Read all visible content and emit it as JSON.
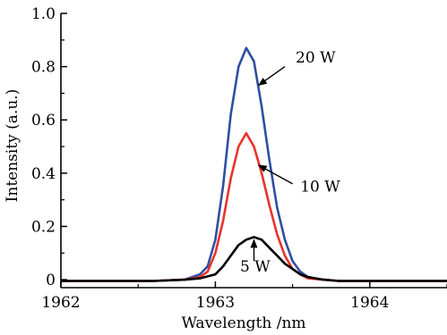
{
  "chart_data": {
    "type": "line",
    "xlabel": "Wavelength /nm",
    "ylabel": "Intensity (a.u.)",
    "xlim": [
      1962.0,
      1964.5
    ],
    "ylim": [
      -0.03,
      1.0
    ],
    "x_ticks": [
      1962,
      1963,
      1964
    ],
    "y_ticks": [
      0,
      0.2,
      0.4,
      0.6,
      0.8,
      1.0
    ],
    "x_tick_labels": [
      "1962",
      "1963",
      "1964"
    ],
    "y_tick_labels": [
      "0",
      "0.2",
      "0.4",
      "0.6",
      "0.8",
      "1.0"
    ],
    "grid": false,
    "series": [
      {
        "color": "#2f4fa0",
        "x": [
          1962.0,
          1962.6,
          1962.8,
          1962.9,
          1962.95,
          1963.0,
          1963.05,
          1963.1,
          1963.15,
          1963.2,
          1963.25,
          1963.3,
          1963.35,
          1963.4,
          1963.45,
          1963.5,
          1963.55,
          1963.6,
          1963.7,
          1963.8,
          1964.0,
          1964.5
        ],
        "y": [
          -0.005,
          -0.005,
          0.0,
          0.02,
          0.05,
          0.15,
          0.35,
          0.62,
          0.8,
          0.87,
          0.82,
          0.65,
          0.45,
          0.27,
          0.15,
          0.07,
          0.03,
          0.01,
          0.0,
          -0.005,
          -0.005,
          -0.005
        ]
      },
      {
        "color": "#e8332a",
        "x": [
          1962.0,
          1962.6,
          1962.8,
          1962.9,
          1962.95,
          1963.0,
          1963.05,
          1963.1,
          1963.15,
          1963.2,
          1963.25,
          1963.3,
          1963.35,
          1963.4,
          1963.45,
          1963.5,
          1963.55,
          1963.6,
          1963.7,
          1963.8,
          1964.0,
          1964.5
        ],
        "y": [
          -0.005,
          -0.005,
          0.0,
          0.01,
          0.03,
          0.1,
          0.22,
          0.38,
          0.5,
          0.55,
          0.5,
          0.4,
          0.28,
          0.17,
          0.09,
          0.04,
          0.02,
          0.005,
          0.0,
          -0.005,
          -0.005,
          -0.005
        ]
      },
      {
        "color": "#000000",
        "x": [
          1962.0,
          1962.6,
          1962.8,
          1962.9,
          1963.0,
          1963.05,
          1963.1,
          1963.15,
          1963.2,
          1963.25,
          1963.3,
          1963.35,
          1963.4,
          1963.45,
          1963.5,
          1963.55,
          1963.6,
          1963.7,
          1963.8,
          1964.0,
          1964.5
        ],
        "y": [
          -0.005,
          -0.005,
          0.0,
          0.005,
          0.02,
          0.05,
          0.09,
          0.13,
          0.15,
          0.16,
          0.15,
          0.12,
          0.09,
          0.06,
          0.04,
          0.02,
          0.01,
          0.0,
          -0.005,
          -0.005,
          -0.005
        ]
      }
    ],
    "annotations": [
      {
        "text": "20 W",
        "x": 1963.52,
        "y": 0.815,
        "arrow_to": [
          1963.28,
          0.73
        ],
        "arrow_from": [
          1963.45,
          0.8
        ]
      },
      {
        "text": "10 W",
        "x": 1963.55,
        "y": 0.33,
        "arrow_to": [
          1963.28,
          0.43
        ],
        "arrow_from": [
          1963.5,
          0.36
        ]
      },
      {
        "text": "5 W",
        "x": 1963.16,
        "y": 0.03,
        "arrow_to": [
          1963.25,
          0.15
        ],
        "arrow_from": [
          1963.25,
          0.07
        ]
      }
    ]
  }
}
